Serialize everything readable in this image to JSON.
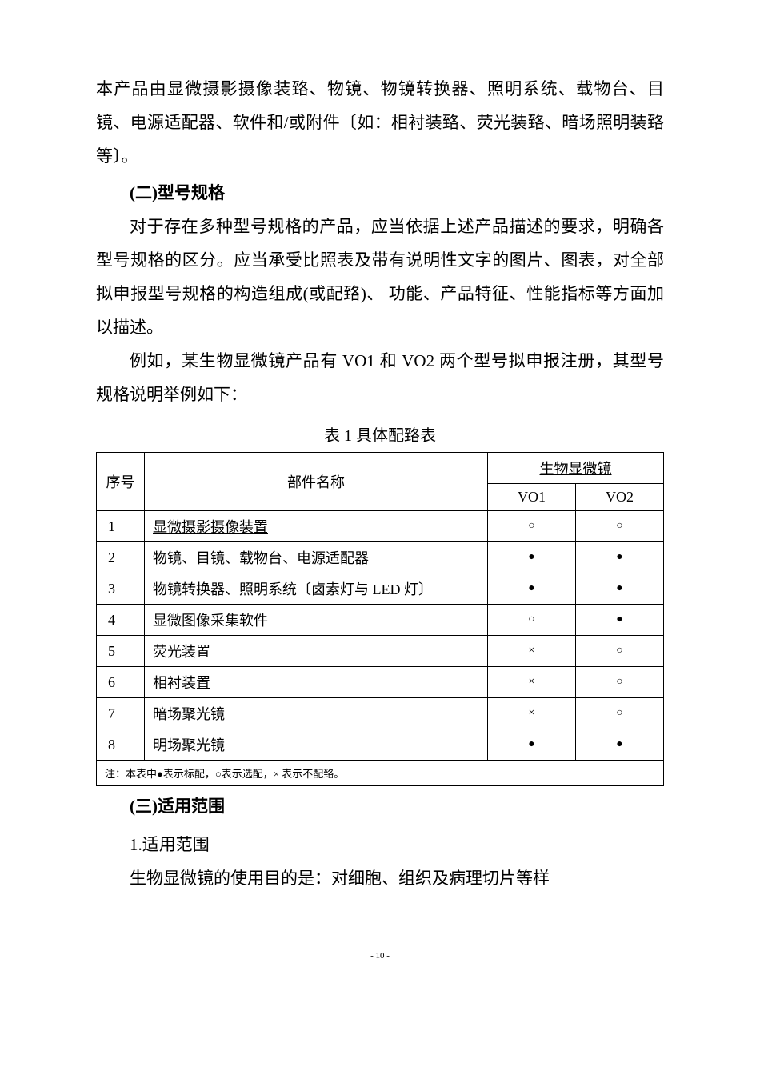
{
  "intro_para": "本产品由显微摄影摄像装臵、物镜、物镜转换器、照明系统、载物台、目镜、电源适配器、软件和/或附件〔如：相衬装臵、荧光装臵、暗场照明装臵等〕。",
  "heading2": "(二)型号规格",
  "para2_1": "对于存在多种型号规格的产品，应当依据上述产品描述的要求，明确各型号规格的区分。应当承受比照表及带有说明性文字的图片、图表，对全部拟申报型号规格的构造组成(或配臵)、 功能、产品特征、性能指标等方面加以描述。",
  "para2_2": "例如，某生物显微镜产品有 VO1 和 VO2 两个型号拟申报注册，其型号规格说明举例如下：",
  "table_caption": "表 1 具体配臵表",
  "table": {
    "col_seq": "序号",
    "col_name": "部件名称",
    "col_group": "生物显微镜",
    "col_v1": "VO1",
    "col_v2": "VO2",
    "marks": {
      "std": "●",
      "opt": "○",
      "none": "×"
    },
    "rows": [
      {
        "seq": "1",
        "name": "显微摄影摄像装置",
        "underline": true,
        "v1": "○",
        "v2": "○"
      },
      {
        "seq": "2",
        "name": "物镜、目镜、载物台、电源适配器",
        "underline": false,
        "v1": "●",
        "v2": "●"
      },
      {
        "seq": "3",
        "name": "物镜转换器、照明系统〔卤素灯与 LED 灯〕",
        "underline": false,
        "v1": "●",
        "v2": "●"
      },
      {
        "seq": "4",
        "name": "显微图像采集软件",
        "underline": false,
        "v1": "○",
        "v2": "●"
      },
      {
        "seq": "5",
        "name": "荧光装置",
        "underline": false,
        "v1": "×",
        "v2": "○"
      },
      {
        "seq": "6",
        "name": "相衬装置",
        "underline": false,
        "v1": "×",
        "v2": "○"
      },
      {
        "seq": "7",
        "name": "暗场聚光镜",
        "underline": false,
        "v1": "×",
        "v2": "○"
      },
      {
        "seq": "8",
        "name": "明场聚光镜",
        "underline": false,
        "v1": "●",
        "v2": "●"
      }
    ],
    "note": "注：本表中●表示标配，○表示选配，× 表示不配臵。"
  },
  "heading3": "(三)适用范围",
  "sub3_1": "1.适用范围",
  "para3_1": "生物显微镜的使用目的是：对细胞、组织及病理切片等样",
  "page_number": "- 10 -"
}
